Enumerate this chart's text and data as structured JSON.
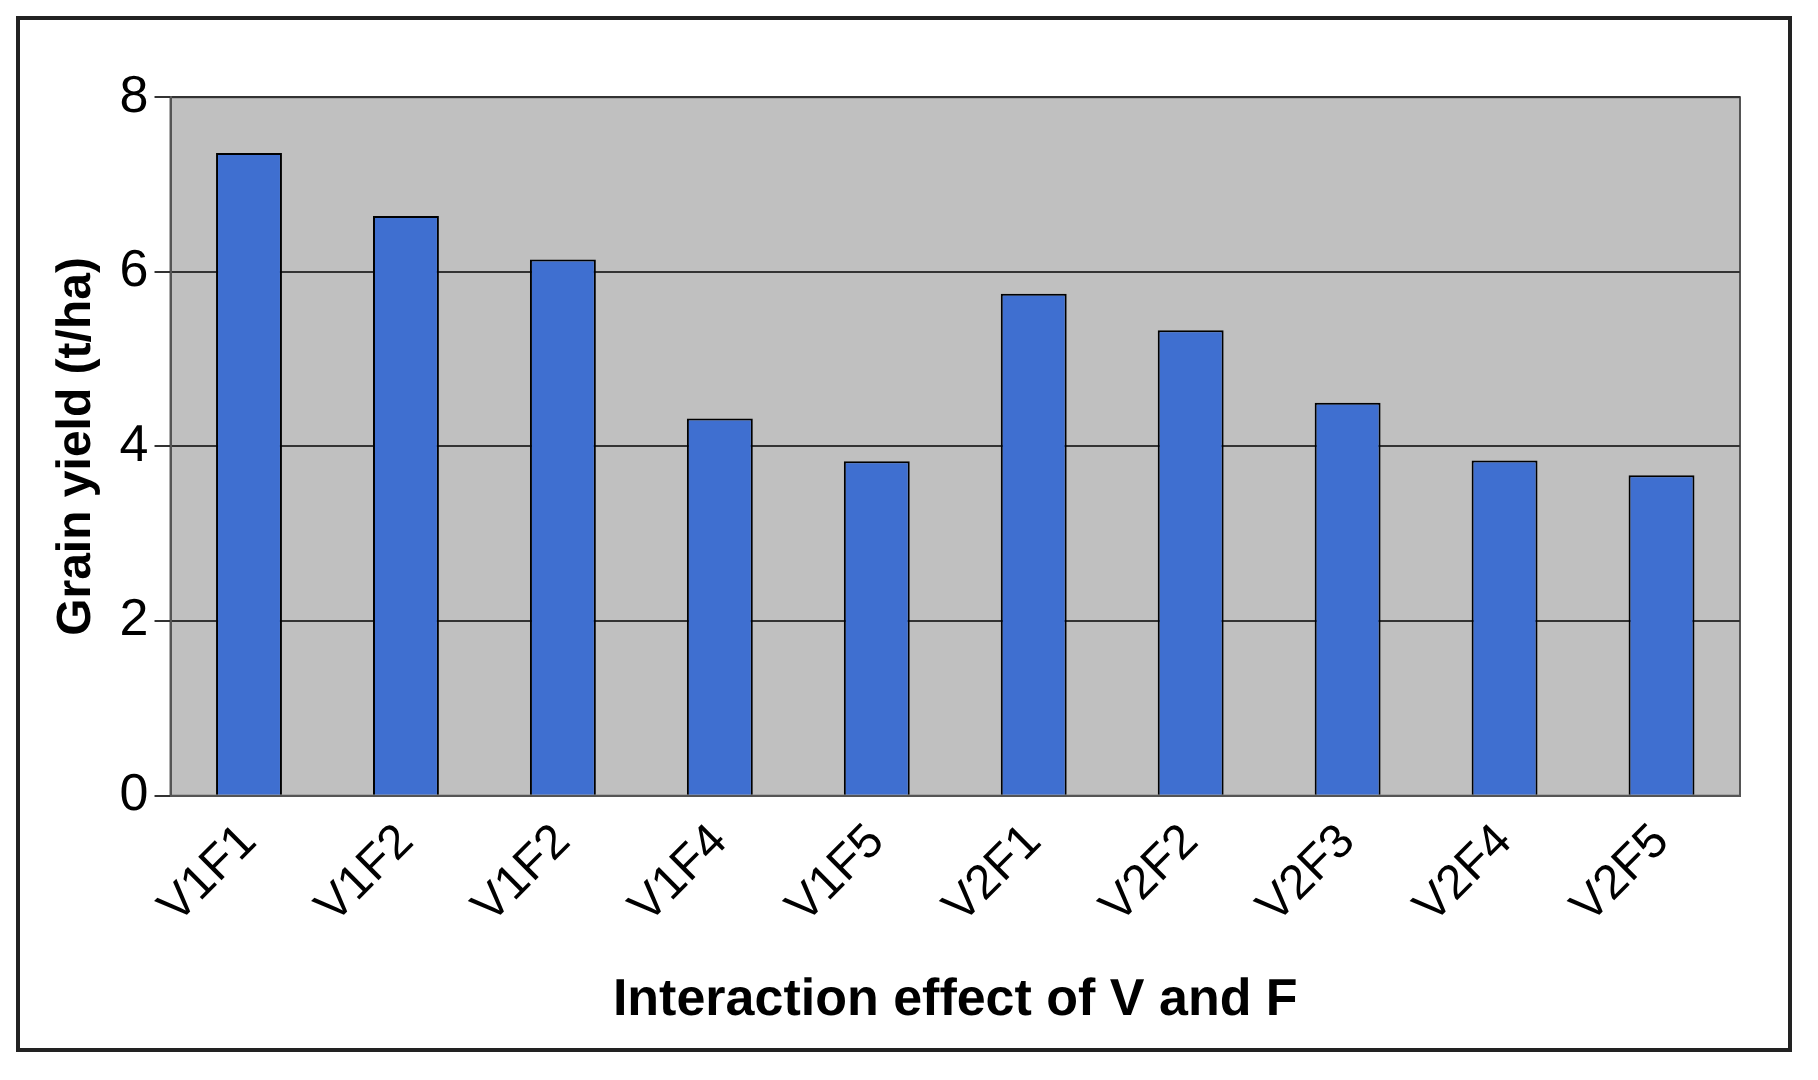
{
  "chart_data": {
    "type": "bar",
    "xlabel": "Interaction effect of V and F",
    "ylabel": "Grain yield (t/ha)",
    "categories": [
      "V1F1",
      "V1F2",
      "V1F2",
      "V1F4",
      "V1F5",
      "V2F1",
      "V2F2",
      "V2F3",
      "V2F4",
      "V2F5"
    ],
    "values": [
      7.36,
      6.64,
      6.14,
      4.32,
      3.83,
      5.75,
      5.33,
      4.5,
      3.84,
      3.67
    ],
    "color": "#3f6fd0",
    "ylim": [
      0,
      8
    ],
    "yticks": [
      0,
      2,
      4,
      6,
      8
    ],
    "grid": "y"
  }
}
